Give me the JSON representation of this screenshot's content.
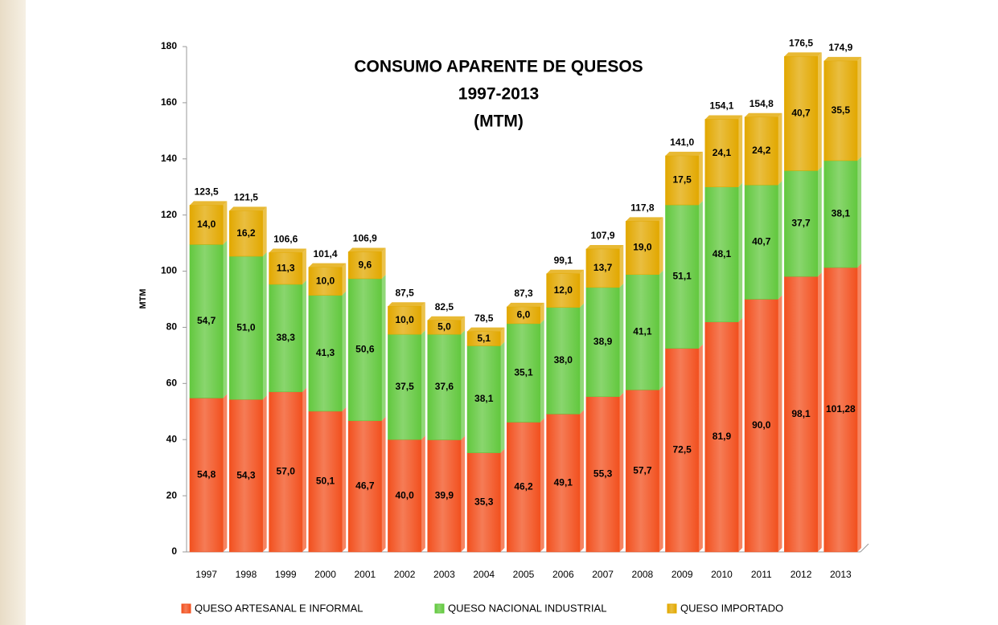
{
  "chart_data": {
    "type": "stacked-bar",
    "title": [
      "CONSUMO APARENTE DE QUESOS",
      "1997-2013",
      "(MTM)"
    ],
    "y_label": "MTM",
    "categories": [
      "1997",
      "1998",
      "1999",
      "2000",
      "2001",
      "2002",
      "2003",
      "2004",
      "2005",
      "2006",
      "2007",
      "2008",
      "2009",
      "2010",
      "2011",
      "2012",
      "2013"
    ],
    "series": [
      {
        "name": "QUESO ARTESANAL E INFORMAL",
        "color": "#f2501e",
        "values": [
          54.8,
          54.3,
          57.0,
          50.1,
          46.7,
          40.0,
          39.9,
          35.3,
          46.2,
          49.1,
          55.3,
          57.7,
          72.5,
          81.9,
          90.0,
          98.1,
          101.28
        ],
        "value_labels": [
          "54,8",
          "54,3",
          "57,0",
          "50,1",
          "46,7",
          "40,0",
          "39,9",
          "35,3",
          "46,2",
          "49,1",
          "55,3",
          "57,7",
          "72,5",
          "81,9",
          "90,0",
          "98,1",
          "101,28"
        ]
      },
      {
        "name": "QUESO NACIONAL INDUSTRIAL",
        "color": "#62c83e",
        "values": [
          54.7,
          51.0,
          38.3,
          41.3,
          50.6,
          37.5,
          37.6,
          38.1,
          35.1,
          38.0,
          38.9,
          41.1,
          51.1,
          48.1,
          40.7,
          37.7,
          38.1
        ],
        "value_labels": [
          "54,7",
          "51,0",
          "38,3",
          "41,3",
          "50,6",
          "37,5",
          "37,6",
          "38,1",
          "35,1",
          "38,0",
          "38,9",
          "41,1",
          "51,1",
          "48,1",
          "40,7",
          "37,7",
          "38,1"
        ]
      },
      {
        "name": "QUESO IMPORTADO",
        "color": "#e2a800",
        "values": [
          14.0,
          16.2,
          11.3,
          10.0,
          9.6,
          10.0,
          5.0,
          5.1,
          6.0,
          12.0,
          13.7,
          19.0,
          17.5,
          24.1,
          24.2,
          40.7,
          35.5
        ],
        "value_labels": [
          "14,0",
          "16,2",
          "11,3",
          "10,0",
          "9,6",
          "10,0",
          "5,0",
          "5,1",
          "6,0",
          "12,0",
          "13,7",
          "19,0",
          "17,5",
          "24,1",
          "24,2",
          "40,7",
          "35,5"
        ]
      }
    ],
    "totals": {
      "values": [
        123.5,
        121.5,
        106.6,
        101.4,
        106.9,
        87.5,
        82.5,
        78.5,
        87.3,
        99.1,
        107.9,
        117.8,
        141.0,
        154.1,
        154.8,
        176.5,
        174.9
      ],
      "value_labels": [
        "123,5",
        "121,5",
        "106,6",
        "101,4",
        "106,9",
        "87,5",
        "82,5",
        "78,5",
        "87,3",
        "99,1",
        "107,9",
        "117,8",
        "141,0",
        "154,1",
        "154,8",
        "176,5",
        "174,9"
      ]
    },
    "ylim": [
      0,
      180
    ],
    "yticks": [
      0,
      20,
      40,
      60,
      80,
      100,
      120,
      140,
      160,
      180
    ],
    "grid": false,
    "legend": "bottom"
  }
}
